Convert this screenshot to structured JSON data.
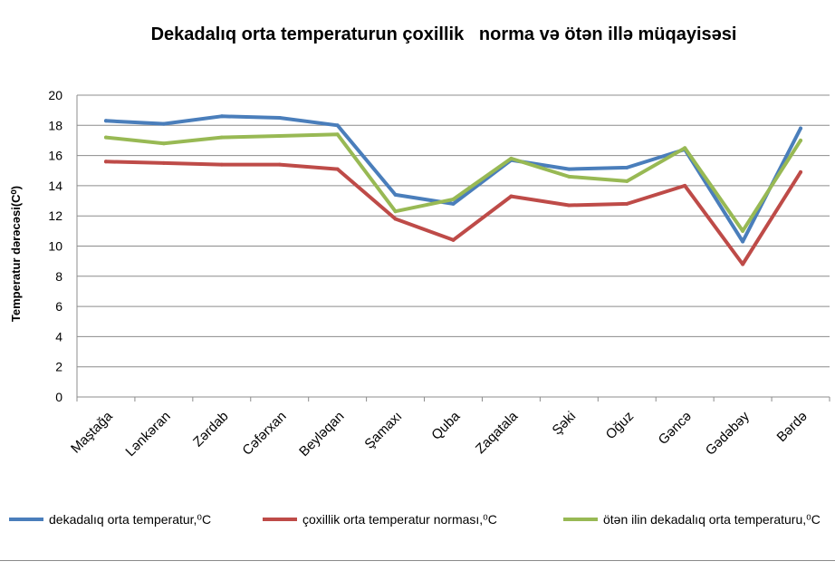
{
  "chart_data": {
    "type": "line",
    "title": "Dekadalıq orta temperaturun çoxillik   norma və ötən illə müqayisəsi",
    "xlabel": "",
    "ylabel": "Temperatur dərəcəsi(C⁰)",
    "ylim": [
      0,
      20
    ],
    "yticks": [
      0,
      2,
      4,
      6,
      8,
      10,
      12,
      14,
      16,
      18,
      20
    ],
    "grid": true,
    "legend_position": "bottom",
    "categories": [
      "Maştağa",
      "Lənkəran",
      "Zərdab",
      "Cəfərxan",
      "Beyləqan",
      "Şamaxı",
      "Quba",
      "Zaqatala",
      "Şəki",
      "Oğuz",
      "Gəncə",
      "Gədəbəy",
      "Bərdə"
    ],
    "series": [
      {
        "name": "dekadalıq orta temperatur,⁰C",
        "color": "#4a7ebb",
        "values": [
          18.3,
          18.1,
          18.6,
          18.5,
          18.0,
          13.4,
          12.8,
          15.7,
          15.1,
          15.2,
          16.4,
          10.3,
          17.8
        ]
      },
      {
        "name": "çoxillik orta temperatur norması,⁰C",
        "color": "#be4b48",
        "values": [
          15.6,
          15.5,
          15.4,
          15.4,
          15.1,
          11.8,
          10.4,
          13.3,
          12.7,
          12.8,
          14.0,
          8.8,
          14.9
        ]
      },
      {
        "name": "ötən ilin dekadalıq orta temperaturu,⁰C",
        "color": "#98b954",
        "values": [
          17.2,
          16.8,
          17.2,
          17.3,
          17.4,
          12.3,
          13.1,
          15.8,
          14.6,
          14.3,
          16.5,
          11.0,
          17.0
        ]
      }
    ]
  }
}
